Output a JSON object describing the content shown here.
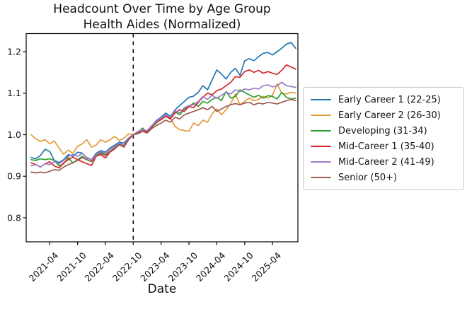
{
  "figure": {
    "title": "Headcount Over Time by Age Group",
    "subtitle": "Health Aides (Normalized)"
  },
  "chart_data": {
    "type": "line",
    "title": "Headcount Over Time by Age Group",
    "subtitle": "Health Aides (Normalized)",
    "xlabel": "Date",
    "ylabel": "",
    "grid": false,
    "legend_position": "right of axes",
    "ylim": [
      0.74,
      1.24
    ],
    "yticks": [
      0.8,
      0.9,
      1.0,
      1.1,
      1.2
    ],
    "xtick_indices": [
      4,
      10,
      16,
      22,
      28,
      34,
      40,
      46,
      52
    ],
    "xtick_labels": [
      "2021-04",
      "2021-10",
      "2022-04",
      "2022-10",
      "2023-04",
      "2023-10",
      "2024-04",
      "2024-10",
      "2025-04"
    ],
    "event_line": {
      "at": "2022-10",
      "index": 22,
      "style": "dashed",
      "color": "#000000",
      "note": "normalization point, all series = 1.0"
    },
    "x": [
      "2020-12",
      "2021-01",
      "2021-02",
      "2021-03",
      "2021-04",
      "2021-05",
      "2021-06",
      "2021-07",
      "2021-08",
      "2021-09",
      "2021-10",
      "2021-11",
      "2021-12",
      "2022-01",
      "2022-02",
      "2022-03",
      "2022-04",
      "2022-05",
      "2022-06",
      "2022-07",
      "2022-08",
      "2022-09",
      "2022-10",
      "2022-11",
      "2022-12",
      "2023-01",
      "2023-02",
      "2023-03",
      "2023-04",
      "2023-05",
      "2023-06",
      "2023-07",
      "2023-08",
      "2023-09",
      "2023-10",
      "2023-11",
      "2023-12",
      "2024-01",
      "2024-02",
      "2024-03",
      "2024-04",
      "2024-05",
      "2024-06",
      "2024-07",
      "2024-08",
      "2024-09",
      "2024-10",
      "2024-11",
      "2024-12",
      "2025-01",
      "2025-02",
      "2025-03",
      "2025-04",
      "2025-05",
      "2025-06",
      "2025-07",
      "2025-08",
      "2025-09"
    ],
    "series": [
      {
        "name": "Early Career 1 (22-25)",
        "color": "#1f77b4",
        "values": [
          0.945,
          0.942,
          0.95,
          0.965,
          0.96,
          0.938,
          0.933,
          0.94,
          0.952,
          0.948,
          0.958,
          0.956,
          0.944,
          0.94,
          0.955,
          0.962,
          0.958,
          0.968,
          0.975,
          0.982,
          0.98,
          0.992,
          1.0,
          1.006,
          1.014,
          1.008,
          1.022,
          1.034,
          1.042,
          1.052,
          1.044,
          1.06,
          1.07,
          1.08,
          1.09,
          1.093,
          1.102,
          1.118,
          1.108,
          1.132,
          1.156,
          1.146,
          1.134,
          1.15,
          1.16,
          1.143,
          1.178,
          1.183,
          1.178,
          1.188,
          1.196,
          1.198,
          1.192,
          1.2,
          1.208,
          1.218,
          1.222,
          1.208
        ]
      },
      {
        "name": "Early Career 2 (26-30)",
        "color": "#e59a38",
        "values": [
          1.0,
          0.99,
          0.984,
          0.988,
          0.978,
          0.985,
          0.968,
          0.953,
          0.963,
          0.955,
          0.972,
          0.978,
          0.988,
          0.97,
          0.975,
          0.988,
          0.982,
          0.988,
          0.996,
          0.986,
          0.992,
          1.002,
          1.0,
          1.004,
          1.01,
          1.006,
          1.018,
          1.03,
          1.038,
          1.046,
          1.04,
          1.02,
          1.012,
          1.01,
          1.008,
          1.028,
          1.022,
          1.035,
          1.03,
          1.05,
          1.062,
          1.048,
          1.06,
          1.075,
          1.098,
          1.072,
          1.08,
          1.088,
          1.082,
          1.085,
          1.092,
          1.088,
          1.095,
          1.122,
          1.1,
          1.098,
          1.102,
          1.1
        ]
      },
      {
        "name": "Developing (31-34)",
        "color": "#2ca02c",
        "values": [
          0.94,
          0.938,
          0.942,
          0.94,
          0.942,
          0.938,
          0.925,
          0.93,
          0.945,
          0.932,
          0.94,
          0.948,
          0.94,
          0.935,
          0.95,
          0.958,
          0.952,
          0.96,
          0.968,
          0.978,
          0.972,
          0.99,
          1.0,
          1.005,
          1.016,
          1.006,
          1.018,
          1.028,
          1.038,
          1.048,
          1.04,
          1.055,
          1.048,
          1.062,
          1.068,
          1.076,
          1.068,
          1.08,
          1.076,
          1.085,
          1.09,
          1.082,
          1.104,
          1.088,
          1.092,
          1.108,
          1.102,
          1.096,
          1.09,
          1.095,
          1.088,
          1.094,
          1.092,
          1.086,
          1.102,
          1.09,
          1.086,
          1.088
        ]
      },
      {
        "name": "Mid-Career 1 (35-40)",
        "color": "#d62728",
        "values": [
          0.932,
          0.928,
          0.922,
          0.93,
          0.935,
          0.925,
          0.92,
          0.932,
          0.94,
          0.946,
          0.94,
          0.935,
          0.93,
          0.926,
          0.948,
          0.952,
          0.944,
          0.958,
          0.966,
          0.976,
          0.97,
          0.988,
          1.0,
          1.004,
          1.012,
          1.005,
          1.02,
          1.03,
          1.036,
          1.044,
          1.038,
          1.052,
          1.06,
          1.056,
          1.068,
          1.065,
          1.078,
          1.09,
          1.1,
          1.096,
          1.106,
          1.11,
          1.118,
          1.126,
          1.14,
          1.138,
          1.152,
          1.156,
          1.15,
          1.155,
          1.148,
          1.152,
          1.148,
          1.145,
          1.155,
          1.168,
          1.163,
          1.158
        ]
      },
      {
        "name": "Mid-Career 2 (41-49)",
        "color": "#9b7bc8",
        "values": [
          0.925,
          0.928,
          0.922,
          0.93,
          0.928,
          0.935,
          0.93,
          0.938,
          0.948,
          0.952,
          0.948,
          0.955,
          0.945,
          0.94,
          0.952,
          0.96,
          0.956,
          0.965,
          0.972,
          0.98,
          0.975,
          0.992,
          1.0,
          1.008,
          1.012,
          1.01,
          1.022,
          1.032,
          1.04,
          1.048,
          1.042,
          1.058,
          1.052,
          1.065,
          1.07,
          1.072,
          1.08,
          1.092,
          1.085,
          1.095,
          1.088,
          1.095,
          1.102,
          1.098,
          1.108,
          1.104,
          1.11,
          1.108,
          1.112,
          1.11,
          1.118,
          1.12,
          1.115,
          1.118,
          1.126,
          1.118,
          1.116,
          1.114
        ]
      },
      {
        "name": "Senior (50+)",
        "color": "#9d5c52",
        "values": [
          0.91,
          0.908,
          0.91,
          0.908,
          0.912,
          0.916,
          0.914,
          0.922,
          0.928,
          0.932,
          0.938,
          0.945,
          0.94,
          0.936,
          0.948,
          0.955,
          0.95,
          0.96,
          0.968,
          0.975,
          0.972,
          0.99,
          1.0,
          1.002,
          1.008,
          1.004,
          1.015,
          1.022,
          1.028,
          1.035,
          1.03,
          1.042,
          1.038,
          1.048,
          1.052,
          1.056,
          1.06,
          1.065,
          1.06,
          1.068,
          1.056,
          1.062,
          1.068,
          1.072,
          1.075,
          1.072,
          1.076,
          1.078,
          1.072,
          1.076,
          1.074,
          1.078,
          1.076,
          1.074,
          1.078,
          1.082,
          1.085,
          1.082
        ]
      }
    ]
  }
}
